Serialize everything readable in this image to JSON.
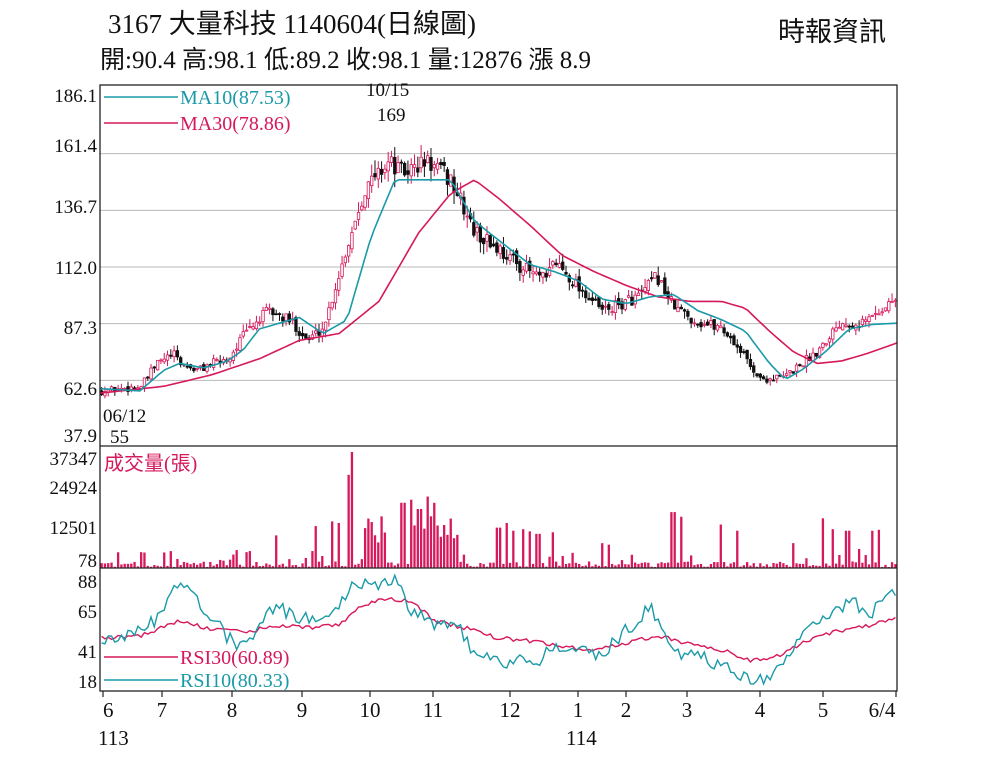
{
  "header": {
    "title": "3167  大量科技 1140604(日線圖)",
    "source": "時報資訊",
    "stats": "開:90.4 高:98.1 低:89.2 收:98.1 量:12876 漲 8.9"
  },
  "colors": {
    "up": "#d6185c",
    "down": "#111111",
    "ma10": "#1a9aa8",
    "ma30": "#d6185c",
    "volume": "#d6185c",
    "rsi30": "#d6185c",
    "rsi10": "#1a9aa8",
    "grid": "#b8b8b8"
  },
  "chart_data": [
    {
      "type": "candlestick",
      "yticks": [
        "186.1",
        "161.4",
        "136.7",
        "112.0",
        "87.3",
        "62.6",
        "37.9"
      ],
      "ylim": [
        37.9,
        186.1
      ],
      "legend": [
        {
          "name": "MA10(87.53)",
          "color": "#1a9aa8"
        },
        {
          "name": "MA30(78.86)",
          "color": "#d6185c"
        }
      ],
      "annotations": [
        {
          "date": "10/15",
          "value": "169"
        },
        {
          "date": "06/12",
          "value": "55"
        }
      ],
      "close_path": [
        [
          0,
          58
        ],
        [
          0.05,
          60
        ],
        [
          0.07,
          70
        ],
        [
          0.09,
          74
        ],
        [
          0.1,
          70
        ],
        [
          0.12,
          67
        ],
        [
          0.14,
          70
        ],
        [
          0.16,
          72
        ],
        [
          0.18,
          83
        ],
        [
          0.21,
          93
        ],
        [
          0.24,
          88
        ],
        [
          0.26,
          80
        ],
        [
          0.28,
          86
        ],
        [
          0.3,
          110
        ],
        [
          0.33,
          145
        ],
        [
          0.36,
          158
        ],
        [
          0.38,
          153
        ],
        [
          0.41,
          158
        ],
        [
          0.44,
          150
        ],
        [
          0.47,
          127
        ],
        [
          0.5,
          120
        ],
        [
          0.53,
          112
        ],
        [
          0.56,
          106
        ],
        [
          0.57,
          115
        ],
        [
          0.6,
          104
        ],
        [
          0.63,
          93
        ],
        [
          0.65,
          95
        ],
        [
          0.68,
          100
        ],
        [
          0.7,
          108
        ],
        [
          0.72,
          95
        ],
        [
          0.75,
          88
        ],
        [
          0.78,
          86
        ],
        [
          0.8,
          78
        ],
        [
          0.83,
          63
        ],
        [
          0.86,
          64
        ],
        [
          0.9,
          75
        ],
        [
          0.93,
          88
        ],
        [
          0.96,
          88
        ],
        [
          1,
          98
        ]
      ],
      "ma10_path": [
        [
          0,
          59
        ],
        [
          0.05,
          58
        ],
        [
          0.08,
          67
        ],
        [
          0.1,
          70
        ],
        [
          0.13,
          68
        ],
        [
          0.16,
          71
        ],
        [
          0.18,
          76
        ],
        [
          0.2,
          85
        ],
        [
          0.25,
          90
        ],
        [
          0.28,
          83
        ],
        [
          0.31,
          89
        ],
        [
          0.34,
          125
        ],
        [
          0.37,
          150
        ],
        [
          0.4,
          150
        ],
        [
          0.44,
          150
        ],
        [
          0.47,
          132
        ],
        [
          0.51,
          121
        ],
        [
          0.54,
          113
        ],
        [
          0.57,
          110
        ],
        [
          0.6,
          106
        ],
        [
          0.63,
          98
        ],
        [
          0.66,
          96
        ],
        [
          0.69,
          99
        ],
        [
          0.72,
          100
        ],
        [
          0.75,
          93
        ],
        [
          0.78,
          89
        ],
        [
          0.81,
          84
        ],
        [
          0.84,
          70
        ],
        [
          0.86,
          63
        ],
        [
          0.88,
          67
        ],
        [
          0.91,
          75
        ],
        [
          0.94,
          85
        ],
        [
          0.97,
          87
        ],
        [
          1,
          87.5
        ]
      ],
      "ma30_path": [
        [
          0,
          57
        ],
        [
          0.08,
          60
        ],
        [
          0.14,
          65
        ],
        [
          0.2,
          72
        ],
        [
          0.25,
          80
        ],
        [
          0.3,
          83
        ],
        [
          0.35,
          97
        ],
        [
          0.4,
          127
        ],
        [
          0.44,
          144
        ],
        [
          0.47,
          150
        ],
        [
          0.5,
          142
        ],
        [
          0.54,
          130
        ],
        [
          0.58,
          117
        ],
        [
          0.62,
          110
        ],
        [
          0.66,
          104
        ],
        [
          0.7,
          99
        ],
        [
          0.74,
          97
        ],
        [
          0.78,
          97
        ],
        [
          0.81,
          94
        ],
        [
          0.84,
          84
        ],
        [
          0.87,
          75
        ],
        [
          0.9,
          70
        ],
        [
          0.93,
          71
        ],
        [
          0.96,
          74
        ],
        [
          1,
          78.9
        ]
      ]
    },
    {
      "type": "bar",
      "series": [
        {
          "name": "成交量(張)"
        }
      ],
      "yticks": [
        "37347",
        "24924",
        "12501",
        "78"
      ],
      "ylim": [
        78,
        37347
      ],
      "spikes": [
        [
          0.08,
          5000
        ],
        [
          0.15,
          2600
        ],
        [
          0.22,
          10500
        ],
        [
          0.27,
          13500
        ],
        [
          0.29,
          15000
        ],
        [
          0.3,
          14500
        ],
        [
          0.34,
          14800
        ],
        [
          0.38,
          21000
        ],
        [
          0.39,
          22000
        ],
        [
          0.4,
          19000
        ],
        [
          0.41,
          23000
        ],
        [
          0.42,
          21000
        ],
        [
          0.44,
          14000
        ],
        [
          0.5,
          13000
        ],
        [
          0.51,
          14500
        ],
        [
          0.52,
          12000
        ],
        [
          0.53,
          12500
        ],
        [
          0.54,
          11800
        ],
        [
          0.55,
          11000
        ],
        [
          0.57,
          11500
        ],
        [
          0.63,
          8000
        ],
        [
          0.64,
          7500
        ],
        [
          0.72,
          18000
        ],
        [
          0.73,
          16500
        ],
        [
          0.73,
          13000
        ],
        [
          0.78,
          14000
        ],
        [
          0.8,
          12000
        ],
        [
          0.87,
          8000
        ],
        [
          0.91,
          16000
        ],
        [
          0.92,
          12500
        ],
        [
          0.94,
          12000
        ],
        [
          0.97,
          12000
        ],
        [
          0.98,
          12300
        ]
      ],
      "spikes_note": "x is fraction of date range"
    },
    {
      "type": "line",
      "series": [
        {
          "name": "RSI30(60.89)",
          "color": "#d6185c"
        },
        {
          "name": "RSI10(80.33)",
          "color": "#1a9aa8"
        }
      ],
      "yticks": [
        "88",
        "65",
        "41",
        "18"
      ],
      "ylim": [
        18,
        88
      ]
    }
  ],
  "x_axis": {
    "months": [
      "6",
      "7",
      "8",
      "9",
      "10",
      "11",
      "12",
      "1",
      "2",
      "3",
      "4",
      "5",
      "6/4"
    ],
    "years": [
      "113",
      "114"
    ]
  }
}
